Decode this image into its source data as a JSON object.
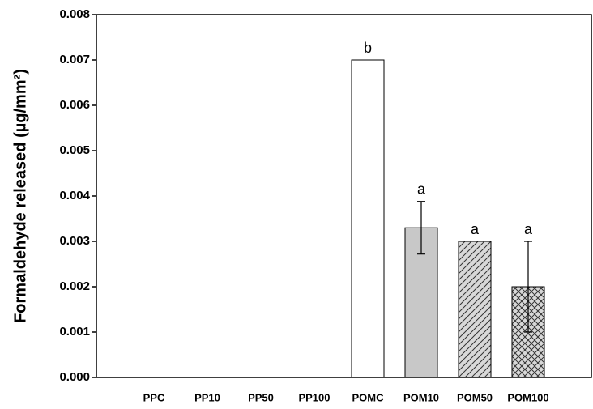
{
  "chart_data": {
    "type": "bar",
    "y_label": "Formaldehyde released (µg/mm²)",
    "categories": [
      "PPC",
      "PP10",
      "PP50",
      "PP100",
      "POMC",
      "POM10",
      "POM50",
      "POM100"
    ],
    "values": [
      0,
      0,
      0,
      0,
      0.007,
      0.0033,
      0.003,
      0.002
    ],
    "errors": [
      null,
      null,
      null,
      null,
      null,
      0.00058,
      null,
      0.001
    ],
    "letters": [
      null,
      null,
      null,
      null,
      "b",
      "a",
      "a",
      "a"
    ],
    "fills": [
      null,
      null,
      null,
      null,
      "white",
      "#c8c8c8",
      "hatch",
      "crosshatch"
    ],
    "ylim": [
      0,
      0.008
    ],
    "yticks": [
      {
        "value": 0,
        "label": "0.000"
      },
      0.001,
      0.002,
      0.003,
      0.004,
      0.005,
      0.006,
      0.007,
      0.008
    ]
  }
}
